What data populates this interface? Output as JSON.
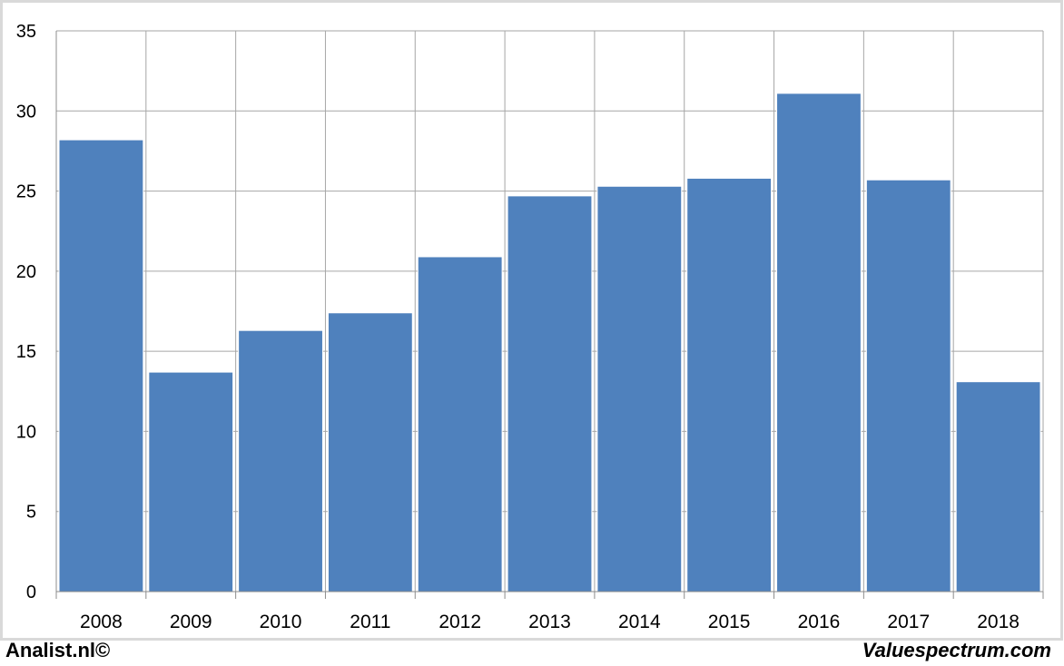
{
  "colors": {
    "bar": "#4f81bd",
    "grid": "#a6a6a6",
    "frame": "#d9d9d9",
    "axis": "#8c8c8c",
    "text": "#000000"
  },
  "footer": {
    "left_text": "Analist.nl©",
    "right_text": "Valuespectrum.com"
  },
  "chart_data": {
    "type": "bar",
    "categories": [
      "2008",
      "2009",
      "2010",
      "2011",
      "2012",
      "2013",
      "2014",
      "2015",
      "2016",
      "2017",
      "2018"
    ],
    "values": [
      28.2,
      13.7,
      16.3,
      17.4,
      20.9,
      24.7,
      25.3,
      25.8,
      31.1,
      25.7,
      13.1
    ],
    "ylim": [
      0,
      35
    ],
    "yticks": [
      0,
      5,
      10,
      15,
      20,
      25,
      30,
      35
    ],
    "grid": true,
    "title": "",
    "xlabel": "",
    "ylabel": ""
  }
}
